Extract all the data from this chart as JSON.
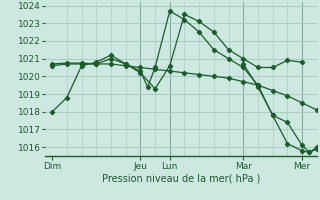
{
  "background_color": "#cce8e0",
  "grid_color": "#aaccc4",
  "line_color": "#1a5c2a",
  "marker_color": "#1a5c2a",
  "xlabel": "Pression niveau de la mer( hPa )",
  "ylim": [
    1015.5,
    1024.2
  ],
  "yticks": [
    1016,
    1017,
    1018,
    1019,
    1020,
    1021,
    1022,
    1023,
    1024
  ],
  "day_labels": [
    "Dim",
    "Jeu",
    "Lun",
    "Mar",
    "Mer"
  ],
  "day_positions": [
    0,
    48,
    64,
    104,
    136
  ],
  "xlim": [
    -4,
    144
  ],
  "vlines_major": [
    48,
    64,
    104,
    136
  ],
  "vlines_minor": [
    8,
    16,
    24,
    32,
    40,
    56,
    72,
    80,
    88,
    96,
    112,
    120,
    128
  ],
  "series": [
    {
      "x": [
        0,
        8,
        16,
        24,
        32,
        40,
        48,
        56,
        64,
        72,
        80,
        88,
        96,
        104,
        112,
        120,
        128,
        136
      ],
      "y": [
        1018.0,
        1018.8,
        1020.6,
        1020.8,
        1021.2,
        1020.7,
        1020.2,
        1019.3,
        1020.6,
        1023.5,
        1023.1,
        1022.5,
        1021.5,
        1021.0,
        1020.5,
        1020.5,
        1020.9,
        1020.8
      ]
    },
    {
      "x": [
        0,
        8,
        16,
        24,
        32,
        40,
        48,
        56,
        64,
        72,
        80,
        88,
        96,
        104,
        112,
        120,
        128,
        136,
        144
      ],
      "y": [
        1020.7,
        1020.75,
        1020.75,
        1020.7,
        1020.7,
        1020.6,
        1020.5,
        1020.4,
        1020.3,
        1020.2,
        1020.1,
        1020.0,
        1019.9,
        1019.7,
        1019.5,
        1019.2,
        1018.9,
        1018.5,
        1018.1
      ]
    },
    {
      "x": [
        0,
        8,
        16,
        24,
        32,
        40,
        48,
        52,
        56,
        64,
        72,
        80,
        88,
        96,
        104,
        112,
        120,
        128,
        136,
        140,
        144
      ],
      "y": [
        1020.6,
        1020.7,
        1020.7,
        1020.7,
        1021.0,
        1020.7,
        1020.3,
        1019.4,
        1020.5,
        1023.7,
        1023.2,
        1022.5,
        1021.5,
        1021.0,
        1020.5,
        1019.5,
        1017.8,
        1016.2,
        1015.8,
        1015.7,
        1016.0
      ]
    },
    {
      "x": [
        104,
        112,
        120,
        128,
        136,
        140,
        144
      ],
      "y": [
        1020.7,
        1019.4,
        1017.8,
        1017.4,
        1016.1,
        1015.7,
        1015.9
      ]
    }
  ]
}
